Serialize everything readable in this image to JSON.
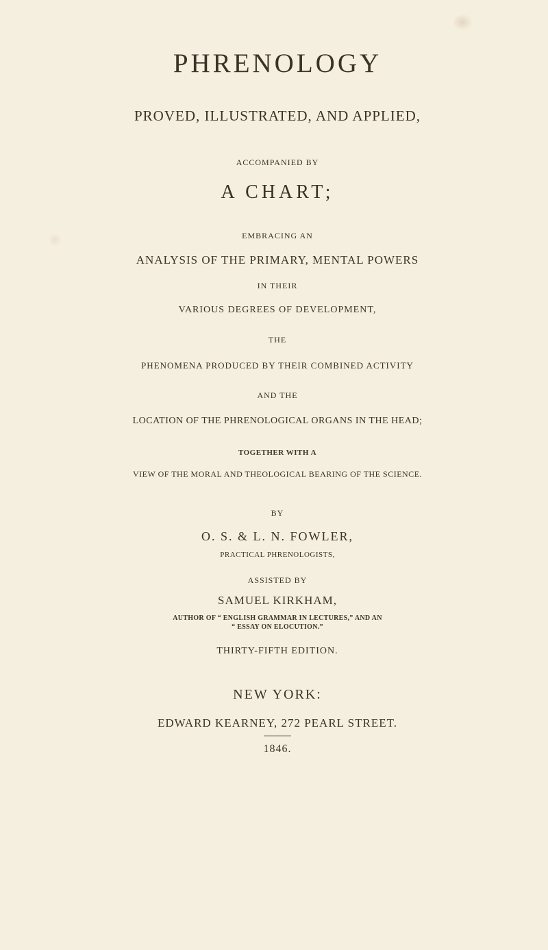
{
  "colors": {
    "background": "#f5efe0",
    "text": "#3a3326"
  },
  "title": "PHRENOLOGY",
  "subtitle": "PROVED, ILLUSTRATED, AND APPLIED,",
  "accompanied_by": "ACCOMPANIED BY",
  "chart": "A CHART;",
  "embracing": "EMBRACING AN",
  "analysis": "ANALYSIS OF THE PRIMARY, MENTAL POWERS",
  "in_their": "IN THEIR",
  "various_degrees": "VARIOUS DEGREES OF DEVELOPMENT,",
  "the": "THE",
  "phenomena": "PHENOMENA PRODUCED BY THEIR COMBINED ACTIVITY",
  "and_the": "AND THE",
  "location": "LOCATION OF THE PHRENOLOGICAL ORGANS IN THE HEAD;",
  "together_with": "TOGETHER WITH A",
  "view": "VIEW OF THE MORAL AND THEOLOGICAL BEARING OF THE SCIENCE.",
  "by": "BY",
  "authors": "O. S. & L. N. FOWLER,",
  "practical": "PRACTICAL PHRENOLOGISTS,",
  "assisted_by": "ASSISTED BY",
  "samuel": "SAMUEL KIRKHAM,",
  "author_of": "AUTHOR OF “ ENGLISH GRAMMAR IN LECTURES,” AND AN",
  "essay": "“ ESSAY ON ELOCUTION.”",
  "edition": "THIRTY-FIFTH EDITION.",
  "city": "NEW YORK:",
  "publisher": "EDWARD KEARNEY, 272 PEARL STREET.",
  "year": "1846."
}
